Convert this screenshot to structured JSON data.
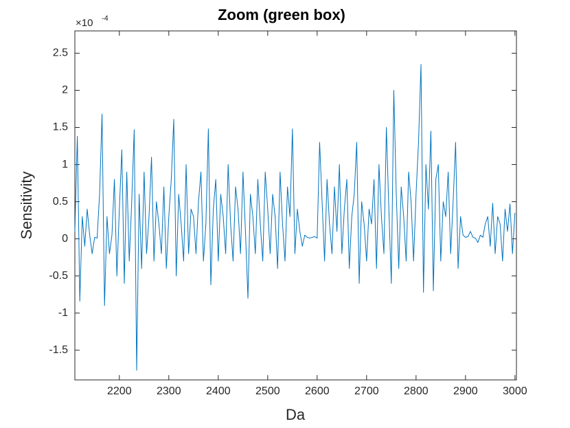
{
  "chart_data": {
    "type": "line",
    "title": "Zoom (green box)",
    "x_label": "Da",
    "y_label": "Sensitivity",
    "y_multiplier": "×10",
    "y_exponent": "-4",
    "xlim": [
      2110,
      3003
    ],
    "ylim": [
      -1.9,
      2.8
    ],
    "xticks": [
      2200,
      2300,
      2400,
      2500,
      2600,
      2700,
      2800,
      2900,
      3000
    ],
    "yticks": [
      -1.5,
      -1,
      -0.5,
      0,
      0.5,
      1,
      1.5,
      2,
      2.5
    ],
    "grid": false,
    "x": [
      2110,
      2115,
      2120,
      2125,
      2130,
      2135,
      2140,
      2145,
      2150,
      2155,
      2160,
      2165,
      2170,
      2175,
      2180,
      2185,
      2190,
      2195,
      2200,
      2205,
      2210,
      2215,
      2220,
      2225,
      2230,
      2235,
      2240,
      2245,
      2250,
      2255,
      2260,
      2265,
      2270,
      2275,
      2280,
      2285,
      2290,
      2295,
      2300,
      2305,
      2310,
      2315,
      2320,
      2325,
      2330,
      2335,
      2340,
      2345,
      2350,
      2355,
      2360,
      2365,
      2370,
      2375,
      2380,
      2385,
      2390,
      2395,
      2400,
      2405,
      2410,
      2415,
      2420,
      2425,
      2430,
      2435,
      2440,
      2445,
      2450,
      2455,
      2460,
      2465,
      2470,
      2475,
      2480,
      2485,
      2490,
      2495,
      2500,
      2505,
      2510,
      2515,
      2520,
      2525,
      2530,
      2535,
      2540,
      2545,
      2550,
      2555,
      2560,
      2565,
      2570,
      2575,
      2580,
      2585,
      2590,
      2595,
      2600,
      2605,
      2610,
      2615,
      2620,
      2625,
      2630,
      2635,
      2640,
      2645,
      2650,
      2655,
      2660,
      2665,
      2670,
      2675,
      2680,
      2685,
      2690,
      2695,
      2700,
      2705,
      2710,
      2715,
      2720,
      2725,
      2730,
      2735,
      2740,
      2745,
      2750,
      2755,
      2760,
      2765,
      2770,
      2775,
      2780,
      2785,
      2790,
      2795,
      2800,
      2805,
      2810,
      2815,
      2820,
      2825,
      2830,
      2835,
      2840,
      2845,
      2850,
      2855,
      2860,
      2865,
      2870,
      2875,
      2880,
      2885,
      2890,
      2895,
      2900,
      2905,
      2910,
      2915,
      2920,
      2925,
      2930,
      2935,
      2940,
      2945,
      2950,
      2955,
      2960,
      2965,
      2970,
      2975,
      2980,
      2985,
      2990,
      2995,
      3000
    ],
    "series": [
      {
        "name": "Sensitivity",
        "color": "#0072bd",
        "values": [
          0.1,
          1.38,
          -0.84,
          0.3,
          -0.1,
          0.4,
          0.05,
          -0.2,
          0.02,
          0.01,
          0.6,
          1.68,
          -0.9,
          0.3,
          -0.2,
          0.05,
          0.8,
          -0.5,
          0.4,
          1.2,
          -0.6,
          0.9,
          -0.3,
          0.5,
          1.47,
          -1.77,
          0.6,
          -0.4,
          0.9,
          -0.2,
          0.3,
          1.1,
          -0.3,
          0.5,
          0.2,
          -0.2,
          0.7,
          -0.4,
          0.3,
          0.8,
          1.61,
          -0.5,
          0.6,
          0.2,
          -0.3,
          1.0,
          -0.2,
          0.4,
          0.3,
          -0.2,
          0.5,
          0.9,
          -0.3,
          0.2,
          1.48,
          -0.62,
          0.4,
          0.8,
          -0.3,
          0.6,
          0.3,
          -0.2,
          1.0,
          0.2,
          -0.3,
          0.7,
          0.4,
          -0.2,
          0.9,
          0.1,
          -0.8,
          0.6,
          0.3,
          -0.2,
          0.8,
          0.2,
          -0.3,
          0.9,
          0.4,
          -0.2,
          0.6,
          0.3,
          -0.4,
          0.9,
          0.2,
          -0.3,
          0.7,
          0.3,
          1.48,
          -0.2,
          0.4,
          0.1,
          -0.1,
          0.05,
          0.02,
          0.01,
          0.02,
          0.03,
          0.01,
          1.3,
          0.5,
          -0.3,
          0.8,
          0.2,
          -0.2,
          0.7,
          0.1,
          1.0,
          -0.2,
          0.4,
          0.8,
          -0.4,
          0.3,
          0.6,
          1.3,
          -0.6,
          0.5,
          0.2,
          -0.3,
          0.4,
          0.2,
          0.8,
          -0.4,
          1.0,
          0.3,
          -0.2,
          1.5,
          0.4,
          -0.6,
          2.0,
          0.6,
          -0.4,
          0.7,
          0.3,
          -0.3,
          0.9,
          0.5,
          -0.3,
          0.6,
          1.3,
          2.35,
          -0.72,
          1.0,
          0.4,
          1.45,
          -0.7,
          0.8,
          1.0,
          -0.3,
          0.5,
          0.3,
          0.9,
          -0.2,
          0.5,
          1.3,
          -0.4,
          0.3,
          0.05,
          0.02,
          0.03,
          0.1,
          0.02,
          0.01,
          -0.05,
          0.05,
          0.02,
          0.2,
          0.3,
          -0.1,
          0.48,
          -0.2,
          0.3,
          0.2,
          -0.3,
          0.4,
          0.1,
          0.47,
          -0.2,
          0.35
        ]
      }
    ]
  }
}
